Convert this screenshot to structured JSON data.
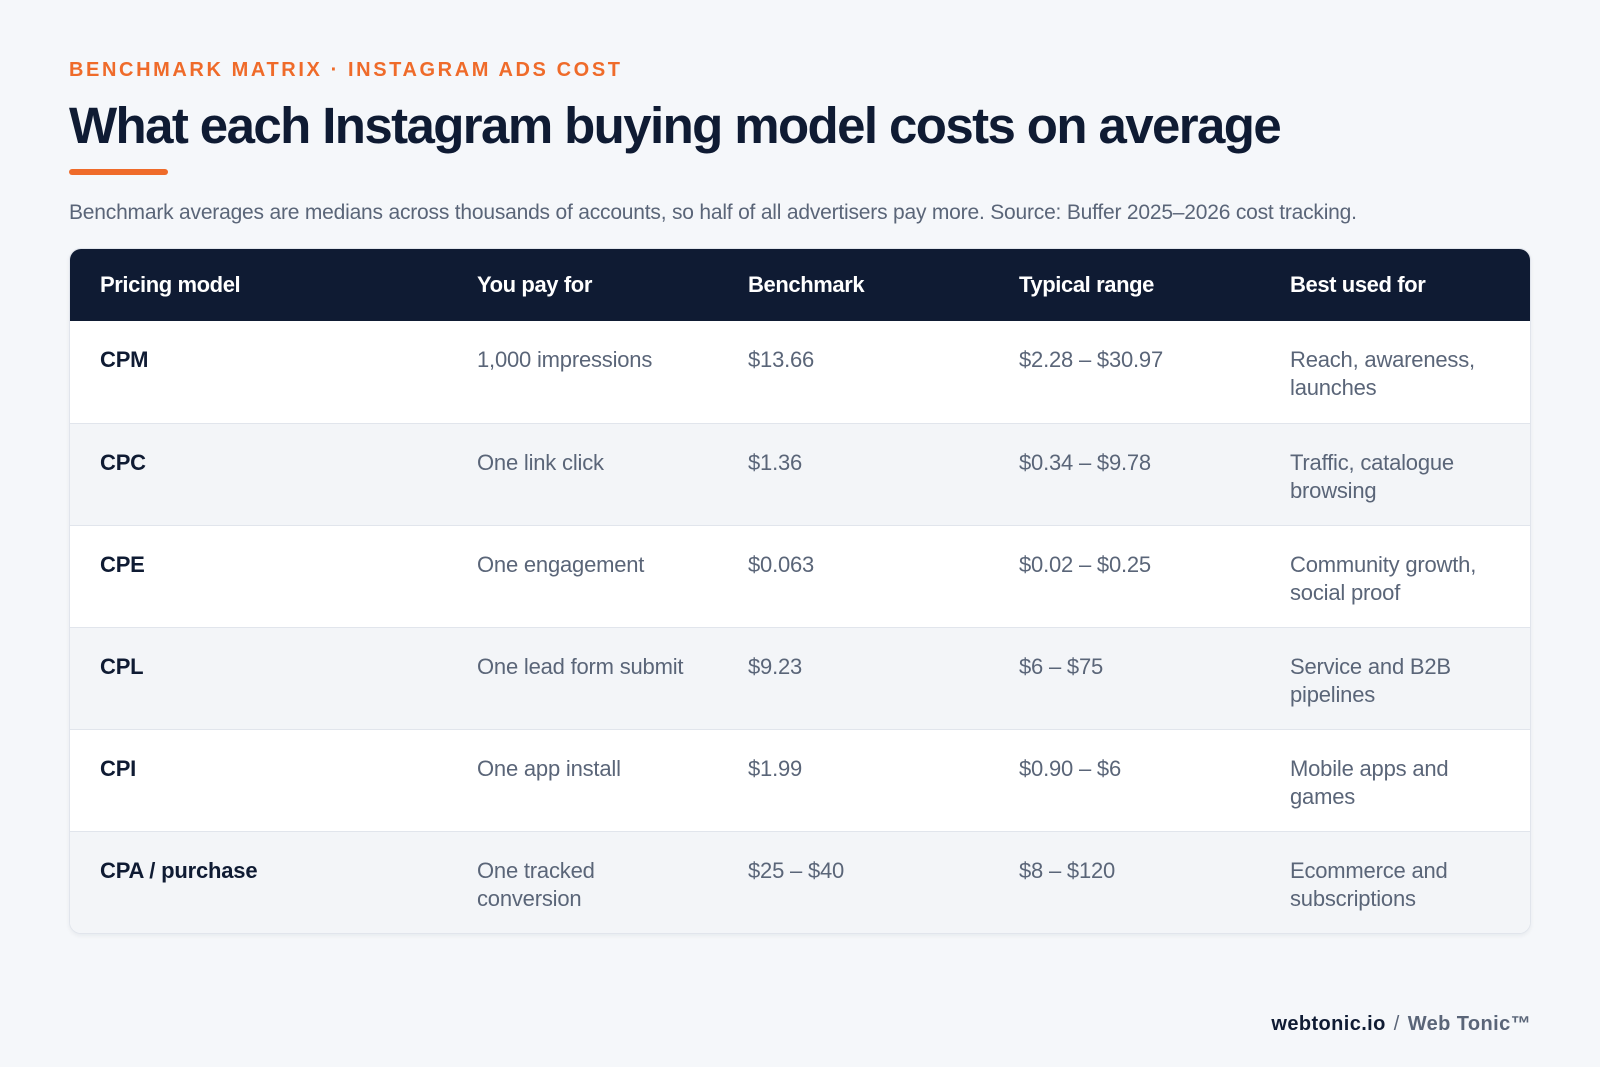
{
  "header": {
    "eyebrow": "BENCHMARK MATRIX · INSTAGRAM ADS COST",
    "title": "What each Instagram buying model costs on average",
    "subtitle": "Benchmark averages are medians across thousands of accounts, so half of all advertisers pay more. Source: Buffer 2025–2026 cost tracking."
  },
  "table": {
    "columns": [
      "Pricing model",
      "You pay for",
      "Benchmark",
      "Typical range",
      "Best used for"
    ],
    "rows": [
      [
        "CPM",
        "1,000 impressions",
        "$13.66",
        "$2.28 – $30.97",
        "Reach, awareness, launches"
      ],
      [
        "CPC",
        "One link click",
        "$1.36",
        "$0.34 – $9.78",
        "Traffic, catalogue browsing"
      ],
      [
        "CPE",
        "One engagement",
        "$0.063",
        "$0.02 – $0.25",
        "Community growth, social proof"
      ],
      [
        "CPL",
        "One lead form submit",
        "$9.23",
        "$6 – $75",
        "Service and B2B pipelines"
      ],
      [
        "CPI",
        "One app install",
        "$1.99",
        "$0.90 – $6",
        "Mobile apps and games"
      ],
      [
        "CPA / purchase",
        "One tracked conversion",
        "$25 – $40",
        "$8 – $120",
        "Ecommerce and subscriptions"
      ]
    ]
  },
  "footer": {
    "domain": "webtonic.io",
    "separator": "/",
    "brand": "Web Tonic™"
  },
  "colors": {
    "accent": "#ef6b2a",
    "navy": "#0f1b33",
    "muted_text": "#5a6578",
    "background": "#f5f7fa"
  }
}
